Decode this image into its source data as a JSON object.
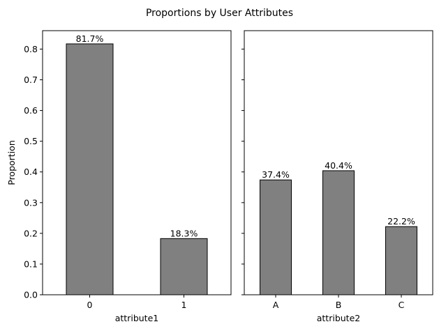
{
  "figure": {
    "title": "Proportions by User Attributes"
  },
  "colors": {
    "bar_fill": "#808080",
    "bar_edge": "#000000"
  },
  "chart_data": [
    {
      "type": "bar",
      "categories": [
        "0",
        "1"
      ],
      "values": [
        0.817,
        0.183
      ],
      "data_labels": [
        "81.7%",
        "18.3%"
      ],
      "xlabel": "attribute1",
      "ylabel": "Proportion",
      "ylim": [
        0,
        0.86
      ],
      "yticks": [
        0.0,
        0.1,
        0.2,
        0.3,
        0.4,
        0.5,
        0.6,
        0.7,
        0.8
      ],
      "ytick_labels": [
        "0.0",
        "0.1",
        "0.2",
        "0.3",
        "0.4",
        "0.5",
        "0.6",
        "0.7",
        "0.8"
      ],
      "grid": false
    },
    {
      "type": "bar",
      "categories": [
        "A",
        "B",
        "C"
      ],
      "values": [
        0.374,
        0.404,
        0.222
      ],
      "data_labels": [
        "37.4%",
        "40.4%",
        "22.2%"
      ],
      "xlabel": "attribute2",
      "ylabel": "",
      "ylim": [
        0,
        0.86
      ],
      "yticks": [
        0.0,
        0.1,
        0.2,
        0.3,
        0.4,
        0.5,
        0.6,
        0.7,
        0.8
      ],
      "ytick_labels": [],
      "grid": false
    }
  ]
}
